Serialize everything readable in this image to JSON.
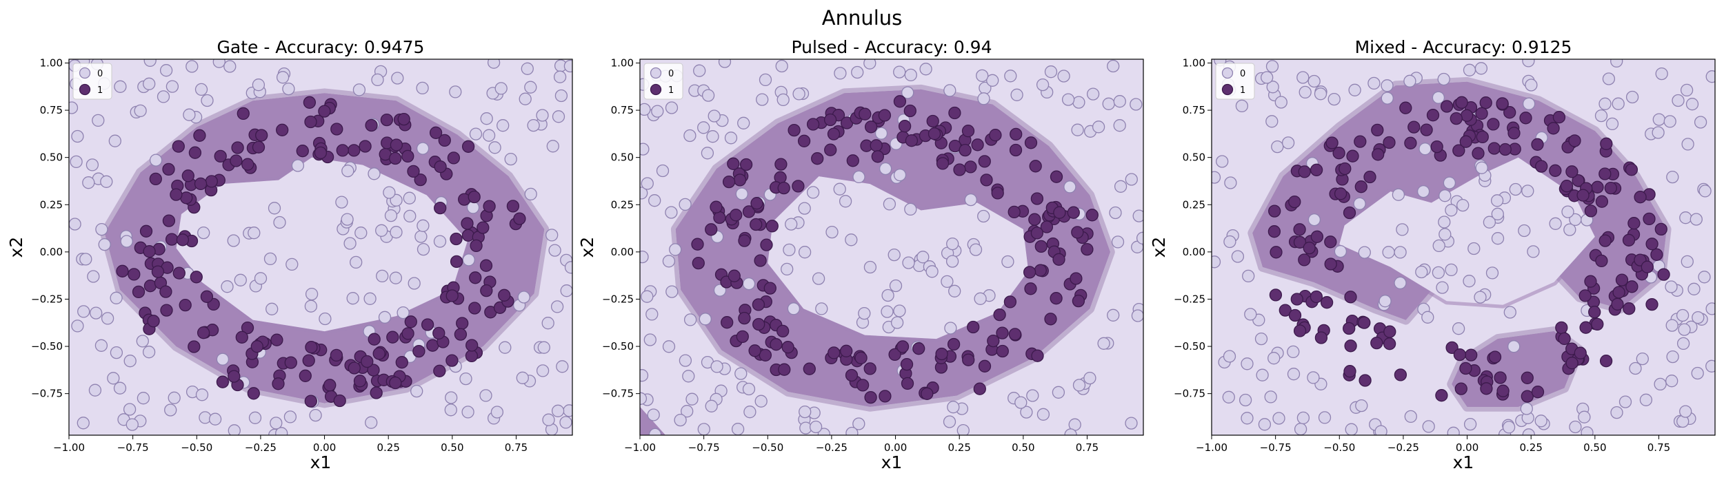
{
  "figure": {
    "title": "Annulus"
  },
  "chart_data": [
    {
      "type": "scatter",
      "title": "Gate - Accuracy: 0.9475",
      "xlabel": "x1",
      "ylabel": "x2",
      "xlim": [
        -1.0,
        0.97
      ],
      "ylim": [
        -0.97,
        1.02
      ],
      "xticks": [
        "−1.00",
        "−0.75",
        "−0.50",
        "−0.25",
        "0.00",
        "0.25",
        "0.50",
        "0.75"
      ],
      "yticks": [
        "−0.75",
        "−0.50",
        "−0.25",
        "0.00",
        "0.25",
        "0.50",
        "0.75",
        "1.00"
      ],
      "grid": false,
      "legend": {
        "placement": "top-left",
        "entries": [
          "0",
          "1"
        ]
      },
      "decision_region_class_1": [
        [
          -0.86,
          0.1
        ],
        [
          -0.72,
          0.42
        ],
        [
          -0.5,
          0.66
        ],
        [
          -0.28,
          0.8
        ],
        [
          0.0,
          0.84
        ],
        [
          0.28,
          0.8
        ],
        [
          0.52,
          0.62
        ],
        [
          0.72,
          0.4
        ],
        [
          0.86,
          0.12
        ],
        [
          0.82,
          -0.22
        ],
        [
          0.62,
          -0.5
        ],
        [
          0.32,
          -0.72
        ],
        [
          0.0,
          -0.8
        ],
        [
          -0.3,
          -0.72
        ],
        [
          -0.58,
          -0.5
        ],
        [
          -0.8,
          -0.2
        ]
      ],
      "hole": [
        [
          -0.56,
          0.2
        ],
        [
          -0.4,
          0.36
        ],
        [
          -0.18,
          0.38
        ],
        [
          -0.05,
          0.5
        ],
        [
          0.15,
          0.46
        ],
        [
          0.4,
          0.3
        ],
        [
          0.56,
          0.06
        ],
        [
          0.5,
          -0.2
        ],
        [
          0.28,
          -0.34
        ],
        [
          0.0,
          -0.42
        ],
        [
          -0.28,
          -0.36
        ],
        [
          -0.48,
          -0.16
        ],
        [
          -0.58,
          0.02
        ]
      ],
      "series": [
        {
          "name": "0",
          "color": "#d8d2ea",
          "count": 200
        },
        {
          "name": "1",
          "color": "#5e2f6f",
          "count": 200
        }
      ]
    },
    {
      "type": "scatter",
      "title": "Pulsed - Accuracy: 0.94",
      "xlabel": "x1",
      "ylabel": "x2",
      "xlim": [
        -1.0,
        0.97
      ],
      "ylim": [
        -0.97,
        1.02
      ],
      "xticks": [
        "−1.00",
        "−0.75",
        "−0.50",
        "−0.25",
        "0.00",
        "0.25",
        "0.50",
        "0.75"
      ],
      "yticks": [
        "−0.75",
        "−0.50",
        "−0.25",
        "0.00",
        "0.25",
        "0.50",
        "0.75",
        "1.00"
      ],
      "grid": false,
      "legend": {
        "placement": "top-left",
        "entries": [
          "0",
          "1"
        ]
      },
      "decision_region_class_1": [
        [
          -0.86,
          0.12
        ],
        [
          -0.7,
          0.44
        ],
        [
          -0.46,
          0.68
        ],
        [
          -0.2,
          0.84
        ],
        [
          0.1,
          0.86
        ],
        [
          0.38,
          0.78
        ],
        [
          0.6,
          0.56
        ],
        [
          0.76,
          0.3
        ],
        [
          0.84,
          0.0
        ],
        [
          0.76,
          -0.3
        ],
        [
          0.54,
          -0.56
        ],
        [
          0.24,
          -0.76
        ],
        [
          -0.1,
          -0.82
        ],
        [
          -0.42,
          -0.74
        ],
        [
          -0.68,
          -0.52
        ],
        [
          -0.84,
          -0.2
        ]
      ],
      "hole": [
        [
          -0.48,
          0.16
        ],
        [
          -0.3,
          0.4
        ],
        [
          -0.1,
          0.36
        ],
        [
          0.1,
          0.22
        ],
        [
          0.32,
          0.26
        ],
        [
          0.5,
          0.12
        ],
        [
          0.52,
          -0.1
        ],
        [
          0.4,
          -0.32
        ],
        [
          0.16,
          -0.46
        ],
        [
          -0.12,
          -0.44
        ],
        [
          -0.36,
          -0.3
        ],
        [
          -0.5,
          -0.06
        ]
      ],
      "series": [
        {
          "name": "0",
          "color": "#d8d2ea",
          "count": 200
        },
        {
          "name": "1",
          "color": "#5e2f6f",
          "count": 200
        }
      ]
    },
    {
      "type": "scatter",
      "title": "Mixed - Accuracy: 0.9125",
      "xlabel": "x1",
      "ylabel": "x2",
      "xlim": [
        -1.0,
        0.97
      ],
      "ylim": [
        -0.97,
        1.02
      ],
      "xticks": [
        "−1.00",
        "−0.75",
        "−0.50",
        "−0.25",
        "0.00",
        "0.25",
        "0.50",
        "0.75"
      ],
      "yticks": [
        "−0.75",
        "−0.50",
        "−0.25",
        "0.00",
        "0.25",
        "0.50",
        "0.75",
        "1.00"
      ],
      "grid": false,
      "legend": {
        "placement": "top-left",
        "entries": [
          "0",
          "1"
        ]
      },
      "decision_region_class_1": [
        [
          -0.84,
          0.1
        ],
        [
          -0.72,
          0.4
        ],
        [
          -0.5,
          0.66
        ],
        [
          -0.28,
          0.88
        ],
        [
          0.0,
          0.9
        ],
        [
          0.28,
          0.8
        ],
        [
          0.5,
          0.64
        ],
        [
          0.66,
          0.4
        ],
        [
          0.78,
          0.12
        ],
        [
          0.76,
          -0.12
        ],
        [
          0.6,
          -0.3
        ],
        [
          0.44,
          -0.24
        ],
        [
          0.3,
          -0.04
        ],
        [
          0.12,
          -0.1
        ],
        [
          -0.1,
          -0.14
        ],
        [
          -0.24,
          -0.36
        ],
        [
          -0.36,
          -0.3
        ],
        [
          -0.6,
          -0.16
        ],
        [
          -0.8,
          -0.08
        ]
      ],
      "hole": [
        [
          -0.48,
          0.14
        ],
        [
          -0.3,
          0.32
        ],
        [
          -0.14,
          0.26
        ],
        [
          0.04,
          0.4
        ],
        [
          0.2,
          0.5
        ],
        [
          0.42,
          0.3
        ],
        [
          0.5,
          0.08
        ],
        [
          0.34,
          -0.16
        ],
        [
          0.14,
          -0.28
        ],
        [
          -0.08,
          -0.26
        ],
        [
          -0.3,
          -0.08
        ],
        [
          -0.5,
          0.04
        ]
      ],
      "extra_region_class_1": [
        [
          -0.02,
          -0.58
        ],
        [
          0.12,
          -0.46
        ],
        [
          0.34,
          -0.42
        ],
        [
          0.44,
          -0.52
        ],
        [
          0.38,
          -0.72
        ],
        [
          0.2,
          -0.82
        ],
        [
          0.0,
          -0.82
        ],
        [
          -0.06,
          -0.7
        ]
      ],
      "series": [
        {
          "name": "0",
          "color": "#d8d2ea",
          "count": 200
        },
        {
          "name": "1",
          "color": "#5e2f6f",
          "count": 200
        }
      ]
    }
  ]
}
